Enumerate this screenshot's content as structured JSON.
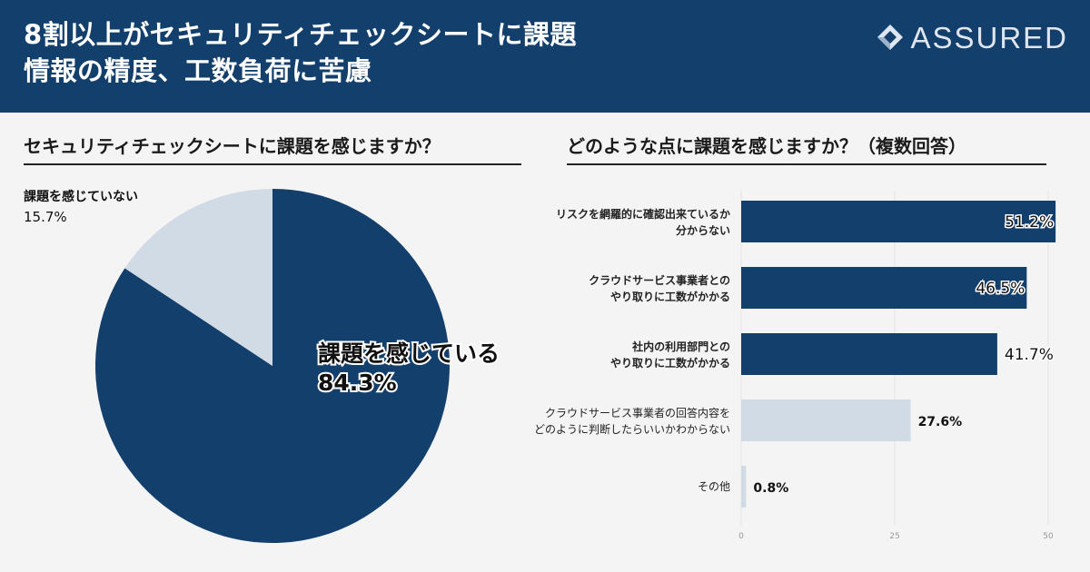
{
  "header": {
    "title_line1": "8割以上がセキュリティチェックシートに課題",
    "title_line2": "情報の精度、工数負荷に苦慮",
    "logo_text": "ASSURED"
  },
  "colors": {
    "dark": "#133f6d",
    "light": "#d0dbe6",
    "background": "#f4f4f4"
  },
  "chart_data": [
    {
      "type": "pie",
      "title": "セキュリティチェックシートに課題を感じますか？",
      "slices": [
        {
          "label": "課題を感じている",
          "value_label": "84.3%",
          "value": 84.3,
          "color": "#133f6d"
        },
        {
          "label": "課題を感じていない",
          "value_label": "15.7%",
          "value": 15.7,
          "color": "#d0dbe6"
        }
      ]
    },
    {
      "type": "bar",
      "orientation": "horizontal",
      "title": "どのような点に課題を感じますか？（複数回答）",
      "categories": [
        [
          "リスクを網羅的に確認出来ているか",
          "分からない"
        ],
        [
          "クラウドサービス事業者との",
          "やり取りに工数がかかる"
        ],
        [
          "社内の利用部門との",
          "やり取りに工数がかかる"
        ],
        [
          "クラウドサービス事業者の回答内容を",
          "どのように判断したらいいかわからない"
        ],
        [
          "その他"
        ]
      ],
      "values": [
        51.2,
        46.5,
        41.7,
        27.6,
        0.8
      ],
      "value_labels": [
        "51.2%",
        "46.5%",
        "41.7%",
        "27.6%",
        "0.8%"
      ],
      "colors": [
        "#133f6d",
        "#133f6d",
        "#133f6d",
        "#d0dbe6",
        "#d0dbe6"
      ],
      "xlim": [
        0,
        55
      ],
      "xticks": [
        0,
        25,
        50
      ],
      "grid": true
    }
  ]
}
